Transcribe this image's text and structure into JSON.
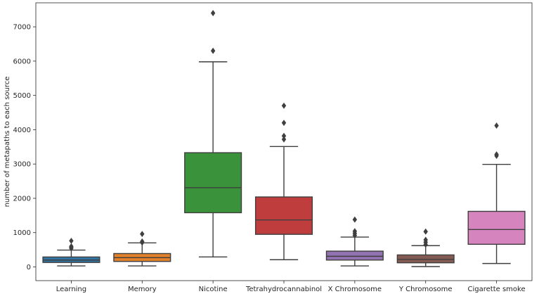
{
  "chart_data": {
    "type": "boxplot",
    "title": "",
    "xlabel": "",
    "ylabel": "number of metapaths to each source",
    "ylim": [
      -400,
      7700
    ],
    "yticks": [
      0,
      1000,
      2000,
      3000,
      4000,
      5000,
      6000,
      7000
    ],
    "categories": [
      "Learning",
      "Memory",
      "Nicotine",
      "Tetrahydrocannabinol",
      "X Chromosome",
      "Y Chromosome",
      "Cigarette smoke"
    ],
    "boxes": [
      {
        "name": "Learning",
        "color": "#3274a1",
        "min": 30,
        "q1": 130,
        "median": 200,
        "q3": 290,
        "max": 490,
        "outliers": [
          540,
          570,
          600,
          760
        ]
      },
      {
        "name": "Memory",
        "color": "#e1812c",
        "min": 30,
        "q1": 160,
        "median": 270,
        "q3": 390,
        "max": 700,
        "outliers": [
          710,
          740,
          960
        ]
      },
      {
        "name": "Nicotine",
        "color": "#3a923a",
        "min": 290,
        "q1": 1580,
        "median": 2310,
        "q3": 3330,
        "max": 5980,
        "outliers": [
          6300,
          7400
        ]
      },
      {
        "name": "Tetrahydrocannabinol",
        "color": "#c03d3e",
        "min": 210,
        "q1": 950,
        "median": 1370,
        "q3": 2040,
        "max": 3510,
        "outliers": [
          3720,
          3820,
          4200,
          4700
        ]
      },
      {
        "name": "X Chromosome",
        "color": "#9372b2",
        "min": 30,
        "q1": 200,
        "median": 310,
        "q3": 460,
        "max": 870,
        "outliers": [
          920,
          980,
          1040,
          1380
        ]
      },
      {
        "name": "Y Chromosome",
        "color": "#845b53",
        "min": 10,
        "q1": 120,
        "median": 220,
        "q3": 350,
        "max": 620,
        "outliers": [
          650,
          720,
          790,
          1030
        ]
      },
      {
        "name": "Cigarette smoke",
        "color": "#d684bd",
        "min": 100,
        "q1": 660,
        "median": 1090,
        "q3": 1620,
        "max": 2990,
        "outliers": [
          3240,
          3280,
          4120
        ]
      }
    ]
  }
}
